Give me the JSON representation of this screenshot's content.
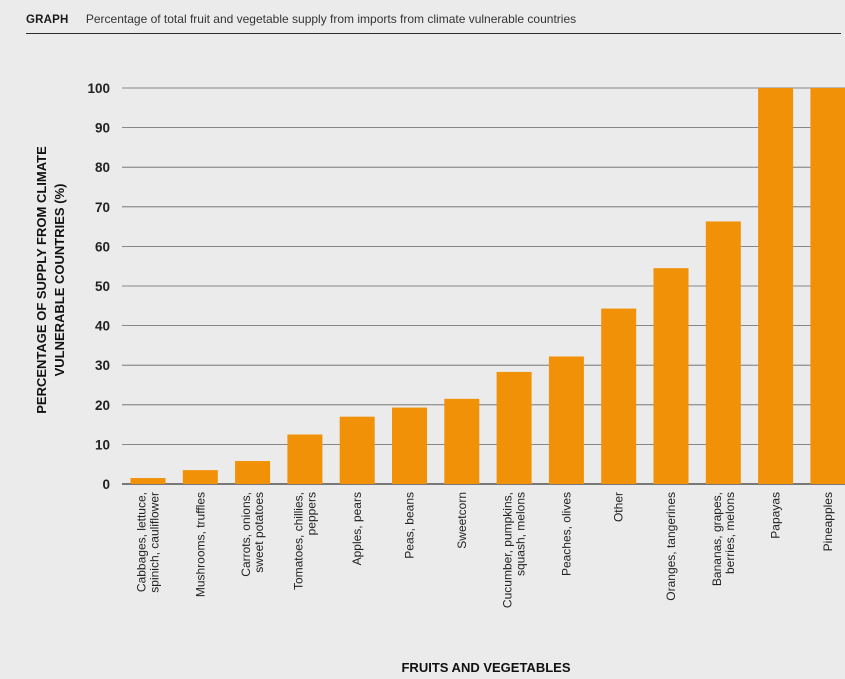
{
  "header": {
    "tag": "GRAPH",
    "title": "Percentage of total fruit and vegetable supply from imports from climate vulnerable countries"
  },
  "chart_data": {
    "type": "bar",
    "title": "Percentage of total fruit and vegetable supply from imports from climate vulnerable countries",
    "xlabel": "FRUITS AND VEGETABLES",
    "ylabel": [
      "PERCENTAGE OF SUPPLY FROM CLIMATE",
      "VULNERABLE COUNTRIES (%)"
    ],
    "ylim": [
      0,
      100
    ],
    "yticks": [
      0,
      10,
      20,
      30,
      40,
      50,
      60,
      70,
      80,
      90,
      100
    ],
    "grid": true,
    "bar_color": "#f09107",
    "categories": [
      [
        "Cabbages, lettuce,",
        "spinich, cauliflower"
      ],
      [
        "Mushrooms, truffles"
      ],
      [
        "Carrots, onions,",
        "sweet potatoes"
      ],
      [
        "Tomatoes, chillies,",
        "peppers"
      ],
      [
        "Apples, pears"
      ],
      [
        "Peas, beans"
      ],
      [
        "Sweetcorn"
      ],
      [
        "Cucumber, pumpkins,",
        "squash, melons"
      ],
      [
        "Peaches, olives"
      ],
      [
        "Other"
      ],
      [
        "Oranges, tangerines"
      ],
      [
        "Bananas, grapes,",
        "berries, melons"
      ],
      [
        "Papayas"
      ],
      [
        "Pineapples"
      ]
    ],
    "values": [
      1.5,
      3.5,
      5.8,
      12.5,
      17,
      19.3,
      21.5,
      28.3,
      32.2,
      44.3,
      54.5,
      66.3,
      100,
      100
    ]
  }
}
